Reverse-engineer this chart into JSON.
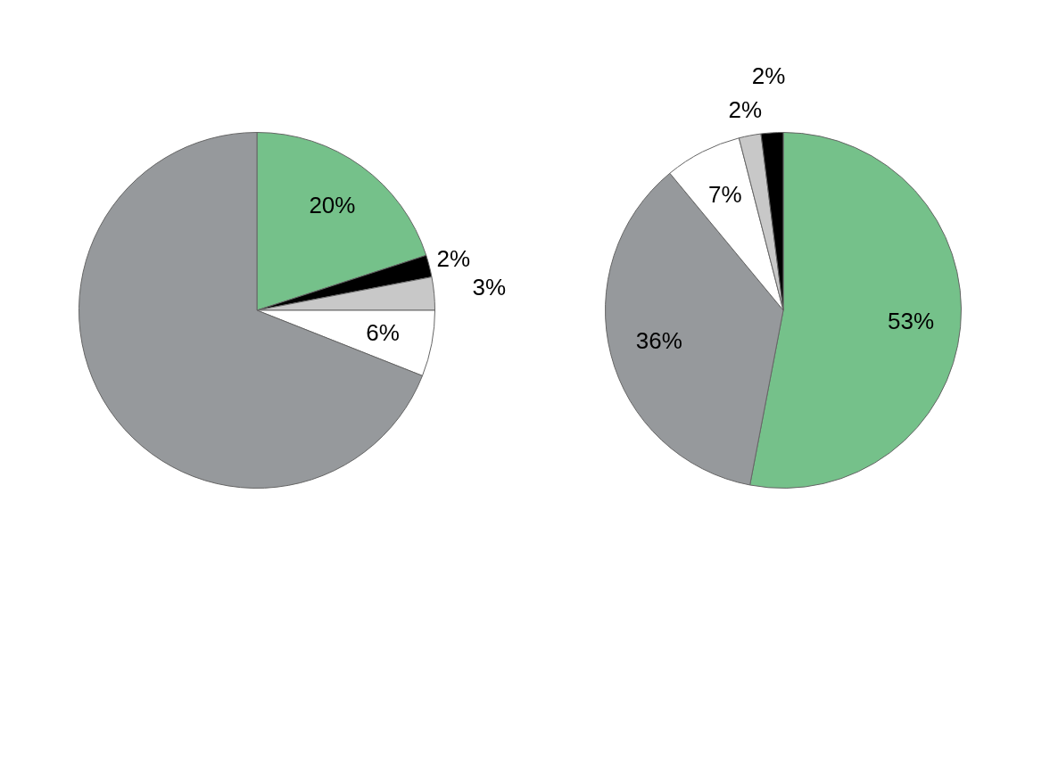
{
  "chart_data": [
    {
      "type": "pie",
      "categories": [
        null,
        null,
        null,
        null,
        null
      ],
      "values": [
        20,
        2,
        3,
        6,
        69
      ],
      "colors": [
        "#75c18a",
        "#000000",
        "#c8c8c8",
        "#ffffff",
        "#96999c"
      ],
      "value_labels": [
        "20%",
        "2%",
        "3%",
        "6%",
        null
      ]
    },
    {
      "type": "pie",
      "categories": [
        null,
        null,
        null,
        null,
        null
      ],
      "values": [
        53,
        36,
        7,
        2,
        2
      ],
      "colors": [
        "#75c18a",
        "#96999c",
        "#ffffff",
        "#c8c8c8",
        "#000000"
      ],
      "value_labels": [
        "53%",
        "36%",
        "7%",
        "2%",
        "2%"
      ]
    }
  ]
}
